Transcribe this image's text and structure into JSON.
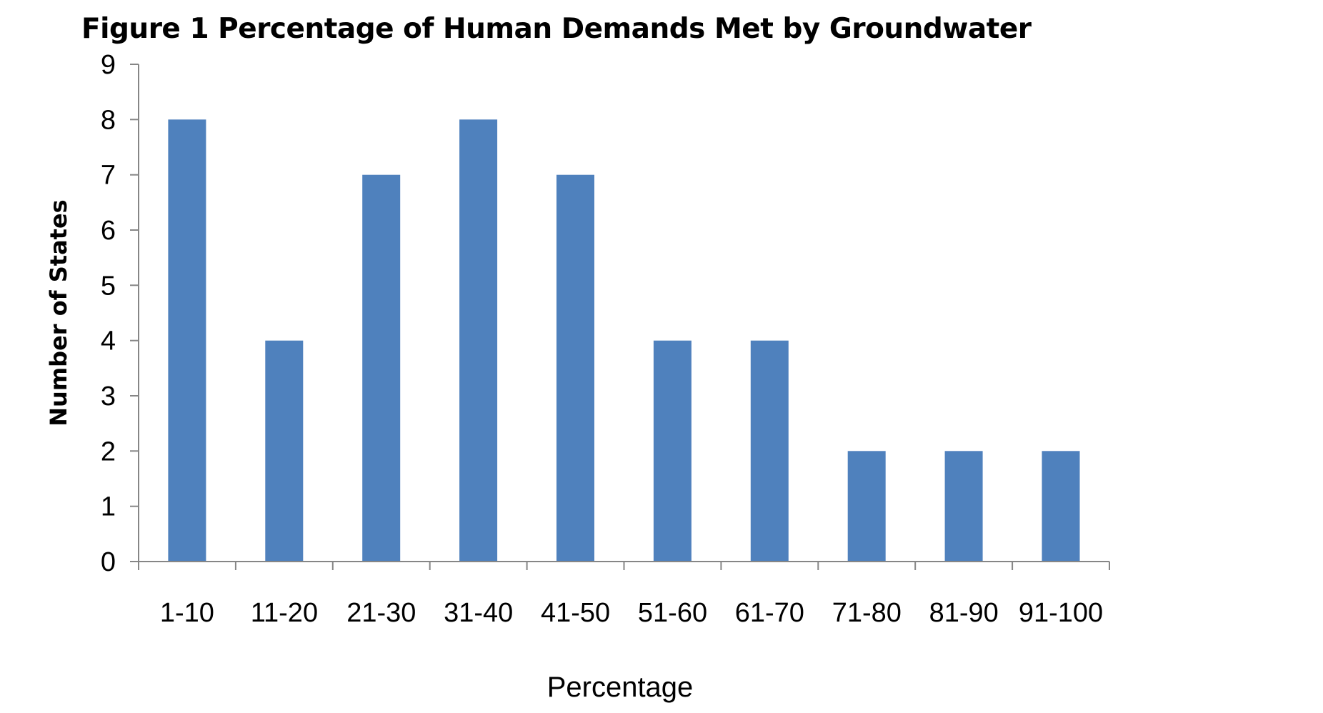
{
  "chart_data": {
    "type": "bar",
    "title": "Figure 1  Percentage of Human Demands Met by Groundwater",
    "xlabel": "Percentage",
    "ylabel": "Number of States",
    "categories": [
      "1-10",
      "11-20",
      "21-30",
      "31-40",
      "41-50",
      "51-60",
      "61-70",
      "71-80",
      "81-90",
      "91-100"
    ],
    "values": [
      8,
      4,
      7,
      8,
      7,
      4,
      4,
      2,
      2,
      2
    ],
    "ylim": [
      0,
      9
    ],
    "yticks": [
      0,
      1,
      2,
      3,
      4,
      5,
      6,
      7,
      8,
      9
    ],
    "grid": false,
    "legend": "none",
    "bar_color": "#4F81BD",
    "axis_color": "#868686"
  }
}
